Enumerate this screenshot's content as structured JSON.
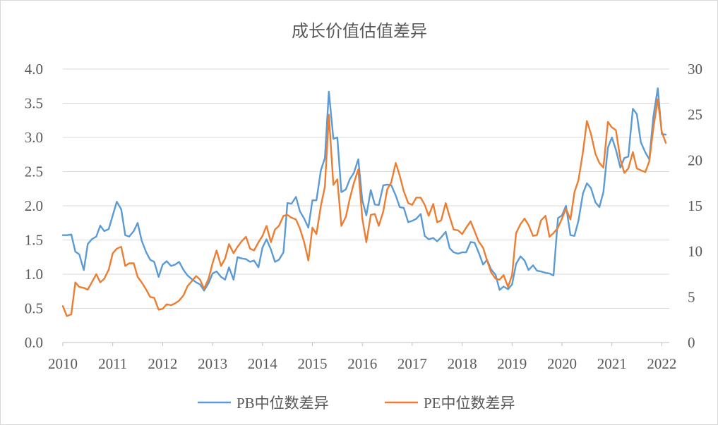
{
  "chart_data": {
    "type": "line",
    "title": "成长价值估值差异",
    "xlabel": "",
    "ylabel": "",
    "x_ticks": [
      "2010",
      "2011",
      "2012",
      "2013",
      "2014",
      "2015",
      "2016",
      "2017",
      "2018",
      "2019",
      "2020",
      "2021",
      "2022"
    ],
    "y_left_ticks": [
      "0.0",
      "0.5",
      "1.0",
      "1.5",
      "2.0",
      "2.5",
      "3.0",
      "3.5",
      "4.0"
    ],
    "y_right_ticks": [
      "0",
      "5",
      "10",
      "15",
      "20",
      "25",
      "30"
    ],
    "ylim_left": [
      0,
      4
    ],
    "ylim_right": [
      0,
      30
    ],
    "xlim": [
      2010,
      2022.15
    ],
    "grid": true,
    "legend_position": "bottom",
    "series": [
      {
        "name": "PB中位数差异",
        "axis": "left",
        "color": "#5B9BD5",
        "points": [
          [
            2010.0,
            1.57
          ],
          [
            2010.08,
            1.57
          ],
          [
            2010.17,
            1.58
          ],
          [
            2010.25,
            1.33
          ],
          [
            2010.33,
            1.29
          ],
          [
            2010.42,
            1.06
          ],
          [
            2010.5,
            1.44
          ],
          [
            2010.58,
            1.51
          ],
          [
            2010.67,
            1.55
          ],
          [
            2010.75,
            1.71
          ],
          [
            2010.83,
            1.63
          ],
          [
            2010.92,
            1.66
          ],
          [
            2011.0,
            1.86
          ],
          [
            2011.08,
            2.06
          ],
          [
            2011.17,
            1.95
          ],
          [
            2011.25,
            1.57
          ],
          [
            2011.33,
            1.55
          ],
          [
            2011.42,
            1.63
          ],
          [
            2011.5,
            1.75
          ],
          [
            2011.58,
            1.49
          ],
          [
            2011.67,
            1.32
          ],
          [
            2011.75,
            1.21
          ],
          [
            2011.83,
            1.18
          ],
          [
            2011.92,
            0.96
          ],
          [
            2012.0,
            1.14
          ],
          [
            2012.08,
            1.19
          ],
          [
            2012.17,
            1.12
          ],
          [
            2012.25,
            1.14
          ],
          [
            2012.33,
            1.18
          ],
          [
            2012.42,
            1.06
          ],
          [
            2012.5,
            0.98
          ],
          [
            2012.58,
            0.93
          ],
          [
            2012.67,
            0.88
          ],
          [
            2012.75,
            0.85
          ],
          [
            2012.83,
            0.76
          ],
          [
            2012.92,
            0.87
          ],
          [
            2013.0,
            1.01
          ],
          [
            2013.08,
            1.04
          ],
          [
            2013.17,
            0.96
          ],
          [
            2013.25,
            0.92
          ],
          [
            2013.33,
            1.1
          ],
          [
            2013.42,
            0.92
          ],
          [
            2013.5,
            1.25
          ],
          [
            2013.58,
            1.23
          ],
          [
            2013.67,
            1.22
          ],
          [
            2013.75,
            1.18
          ],
          [
            2013.83,
            1.2
          ],
          [
            2013.92,
            1.1
          ],
          [
            2014.0,
            1.39
          ],
          [
            2014.08,
            1.51
          ],
          [
            2014.17,
            1.36
          ],
          [
            2014.25,
            1.18
          ],
          [
            2014.33,
            1.21
          ],
          [
            2014.42,
            1.32
          ],
          [
            2014.5,
            2.04
          ],
          [
            2014.58,
            2.03
          ],
          [
            2014.67,
            2.13
          ],
          [
            2014.75,
            1.92
          ],
          [
            2014.83,
            1.82
          ],
          [
            2014.92,
            1.68
          ],
          [
            2015.0,
            2.08
          ],
          [
            2015.08,
            2.08
          ],
          [
            2015.17,
            2.52
          ],
          [
            2015.25,
            2.7
          ],
          [
            2015.33,
            3.67
          ],
          [
            2015.42,
            2.98
          ],
          [
            2015.5,
            3.0
          ],
          [
            2015.58,
            2.2
          ],
          [
            2015.67,
            2.24
          ],
          [
            2015.75,
            2.39
          ],
          [
            2015.83,
            2.48
          ],
          [
            2015.92,
            2.68
          ],
          [
            2016.0,
            2.08
          ],
          [
            2016.08,
            1.86
          ],
          [
            2016.17,
            2.23
          ],
          [
            2016.25,
            2.02
          ],
          [
            2016.33,
            2.01
          ],
          [
            2016.42,
            2.3
          ],
          [
            2016.5,
            2.31
          ],
          [
            2016.58,
            2.3
          ],
          [
            2016.67,
            2.15
          ],
          [
            2016.75,
            1.98
          ],
          [
            2016.83,
            1.97
          ],
          [
            2016.92,
            1.76
          ],
          [
            2017.0,
            1.78
          ],
          [
            2017.08,
            1.81
          ],
          [
            2017.17,
            1.88
          ],
          [
            2017.25,
            1.56
          ],
          [
            2017.33,
            1.51
          ],
          [
            2017.42,
            1.53
          ],
          [
            2017.5,
            1.48
          ],
          [
            2017.58,
            1.54
          ],
          [
            2017.67,
            1.62
          ],
          [
            2017.75,
            1.38
          ],
          [
            2017.83,
            1.32
          ],
          [
            2017.92,
            1.3
          ],
          [
            2018.0,
            1.32
          ],
          [
            2018.08,
            1.32
          ],
          [
            2018.17,
            1.47
          ],
          [
            2018.25,
            1.46
          ],
          [
            2018.33,
            1.32
          ],
          [
            2018.42,
            1.14
          ],
          [
            2018.5,
            1.21
          ],
          [
            2018.58,
            1.07
          ],
          [
            2018.67,
            0.99
          ],
          [
            2018.75,
            0.77
          ],
          [
            2018.83,
            0.82
          ],
          [
            2018.92,
            0.78
          ],
          [
            2019.0,
            0.85
          ],
          [
            2019.08,
            1.15
          ],
          [
            2019.17,
            1.26
          ],
          [
            2019.25,
            1.2
          ],
          [
            2019.33,
            1.06
          ],
          [
            2019.42,
            1.13
          ],
          [
            2019.5,
            1.05
          ],
          [
            2019.58,
            1.04
          ],
          [
            2019.67,
            1.02
          ],
          [
            2019.75,
            1.01
          ],
          [
            2019.83,
            0.98
          ],
          [
            2019.92,
            1.82
          ],
          [
            2020.0,
            1.86
          ],
          [
            2020.08,
            2.0
          ],
          [
            2020.17,
            1.57
          ],
          [
            2020.25,
            1.56
          ],
          [
            2020.33,
            1.78
          ],
          [
            2020.42,
            2.18
          ],
          [
            2020.5,
            2.33
          ],
          [
            2020.58,
            2.26
          ],
          [
            2020.67,
            2.05
          ],
          [
            2020.75,
            1.98
          ],
          [
            2020.83,
            2.2
          ],
          [
            2020.92,
            2.85
          ],
          [
            2021.0,
            3.0
          ],
          [
            2021.08,
            2.82
          ],
          [
            2021.17,
            2.56
          ],
          [
            2021.25,
            2.7
          ],
          [
            2021.33,
            2.72
          ],
          [
            2021.42,
            3.42
          ],
          [
            2021.5,
            3.34
          ],
          [
            2021.58,
            2.93
          ],
          [
            2021.67,
            2.78
          ],
          [
            2021.75,
            2.68
          ],
          [
            2021.83,
            3.3
          ],
          [
            2021.92,
            3.72
          ],
          [
            2022.0,
            3.05
          ],
          [
            2022.08,
            3.04
          ]
        ]
      },
      {
        "name": "PE中位数差异",
        "axis": "right",
        "color": "#ED7D31",
        "points": [
          [
            2010.0,
            4.0
          ],
          [
            2010.08,
            2.9
          ],
          [
            2010.17,
            3.1
          ],
          [
            2010.25,
            6.6
          ],
          [
            2010.33,
            6.1
          ],
          [
            2010.42,
            6.0
          ],
          [
            2010.5,
            5.8
          ],
          [
            2010.58,
            6.6
          ],
          [
            2010.67,
            7.5
          ],
          [
            2010.75,
            6.6
          ],
          [
            2010.83,
            7.0
          ],
          [
            2010.92,
            8.0
          ],
          [
            2011.0,
            9.8
          ],
          [
            2011.08,
            10.3
          ],
          [
            2011.17,
            10.5
          ],
          [
            2011.25,
            8.4
          ],
          [
            2011.33,
            8.7
          ],
          [
            2011.42,
            8.7
          ],
          [
            2011.5,
            7.2
          ],
          [
            2011.58,
            6.6
          ],
          [
            2011.67,
            5.8
          ],
          [
            2011.75,
            5.0
          ],
          [
            2011.83,
            4.9
          ],
          [
            2011.92,
            3.6
          ],
          [
            2012.0,
            3.7
          ],
          [
            2012.08,
            4.2
          ],
          [
            2012.17,
            4.1
          ],
          [
            2012.25,
            4.3
          ],
          [
            2012.33,
            4.6
          ],
          [
            2012.42,
            5.2
          ],
          [
            2012.5,
            6.2
          ],
          [
            2012.58,
            6.7
          ],
          [
            2012.67,
            7.3
          ],
          [
            2012.75,
            6.9
          ],
          [
            2012.83,
            5.9
          ],
          [
            2012.92,
            7.0
          ],
          [
            2013.0,
            8.7
          ],
          [
            2013.08,
            10.1
          ],
          [
            2013.17,
            8.4
          ],
          [
            2013.25,
            9.2
          ],
          [
            2013.33,
            10.8
          ],
          [
            2013.42,
            9.8
          ],
          [
            2013.5,
            10.5
          ],
          [
            2013.58,
            11.1
          ],
          [
            2013.67,
            11.6
          ],
          [
            2013.75,
            10.3
          ],
          [
            2013.83,
            10.1
          ],
          [
            2013.92,
            11.0
          ],
          [
            2014.0,
            11.7
          ],
          [
            2014.08,
            12.8
          ],
          [
            2014.17,
            11.0
          ],
          [
            2014.25,
            12.4
          ],
          [
            2014.33,
            12.8
          ],
          [
            2014.42,
            13.9
          ],
          [
            2014.5,
            14.0
          ],
          [
            2014.58,
            13.7
          ],
          [
            2014.67,
            13.5
          ],
          [
            2014.75,
            12.5
          ],
          [
            2014.83,
            11.1
          ],
          [
            2014.92,
            9.0
          ],
          [
            2015.0,
            12.6
          ],
          [
            2015.08,
            11.9
          ],
          [
            2015.17,
            15.0
          ],
          [
            2015.25,
            17.1
          ],
          [
            2015.33,
            25.0
          ],
          [
            2015.42,
            17.3
          ],
          [
            2015.5,
            17.9
          ],
          [
            2015.58,
            12.8
          ],
          [
            2015.67,
            13.8
          ],
          [
            2015.75,
            15.8
          ],
          [
            2015.83,
            17.5
          ],
          [
            2015.92,
            19.0
          ],
          [
            2016.0,
            13.6
          ],
          [
            2016.08,
            11.0
          ],
          [
            2016.17,
            14.0
          ],
          [
            2016.25,
            14.1
          ],
          [
            2016.33,
            12.8
          ],
          [
            2016.42,
            14.4
          ],
          [
            2016.5,
            16.8
          ],
          [
            2016.58,
            17.6
          ],
          [
            2016.67,
            19.7
          ],
          [
            2016.75,
            18.3
          ],
          [
            2016.83,
            16.6
          ],
          [
            2016.92,
            15.3
          ],
          [
            2017.0,
            15.1
          ],
          [
            2017.08,
            15.9
          ],
          [
            2017.17,
            15.9
          ],
          [
            2017.25,
            15.1
          ],
          [
            2017.33,
            13.9
          ],
          [
            2017.42,
            15.2
          ],
          [
            2017.5,
            13.2
          ],
          [
            2017.58,
            13.4
          ],
          [
            2017.67,
            15.3
          ],
          [
            2017.75,
            13.8
          ],
          [
            2017.83,
            12.4
          ],
          [
            2017.92,
            12.3
          ],
          [
            2018.0,
            11.9
          ],
          [
            2018.08,
            12.6
          ],
          [
            2018.17,
            13.3
          ],
          [
            2018.25,
            12.2
          ],
          [
            2018.33,
            11.1
          ],
          [
            2018.42,
            10.4
          ],
          [
            2018.5,
            9.0
          ],
          [
            2018.58,
            7.7
          ],
          [
            2018.67,
            7.0
          ],
          [
            2018.75,
            6.9
          ],
          [
            2018.83,
            7.4
          ],
          [
            2018.92,
            6.1
          ],
          [
            2019.0,
            7.4
          ],
          [
            2019.08,
            12.0
          ],
          [
            2019.17,
            13.0
          ],
          [
            2019.25,
            13.6
          ],
          [
            2019.33,
            12.9
          ],
          [
            2019.42,
            11.7
          ],
          [
            2019.5,
            11.8
          ],
          [
            2019.58,
            13.4
          ],
          [
            2019.67,
            13.9
          ],
          [
            2019.75,
            11.6
          ],
          [
            2019.83,
            12.0
          ],
          [
            2019.92,
            12.6
          ],
          [
            2020.0,
            13.6
          ],
          [
            2020.08,
            14.7
          ],
          [
            2020.17,
            13.5
          ],
          [
            2020.25,
            16.5
          ],
          [
            2020.33,
            17.8
          ],
          [
            2020.42,
            20.9
          ],
          [
            2020.5,
            24.3
          ],
          [
            2020.58,
            22.9
          ],
          [
            2020.67,
            20.7
          ],
          [
            2020.75,
            19.7
          ],
          [
            2020.83,
            19.2
          ],
          [
            2020.92,
            24.2
          ],
          [
            2021.0,
            23.6
          ],
          [
            2021.08,
            23.3
          ],
          [
            2021.17,
            20.1
          ],
          [
            2021.25,
            18.6
          ],
          [
            2021.33,
            19.1
          ],
          [
            2021.42,
            20.9
          ],
          [
            2021.5,
            19.1
          ],
          [
            2021.58,
            18.9
          ],
          [
            2021.67,
            18.7
          ],
          [
            2021.75,
            19.9
          ],
          [
            2021.83,
            23.5
          ],
          [
            2021.92,
            26.7
          ],
          [
            2022.0,
            23.1
          ],
          [
            2022.08,
            21.9
          ]
        ]
      }
    ]
  }
}
